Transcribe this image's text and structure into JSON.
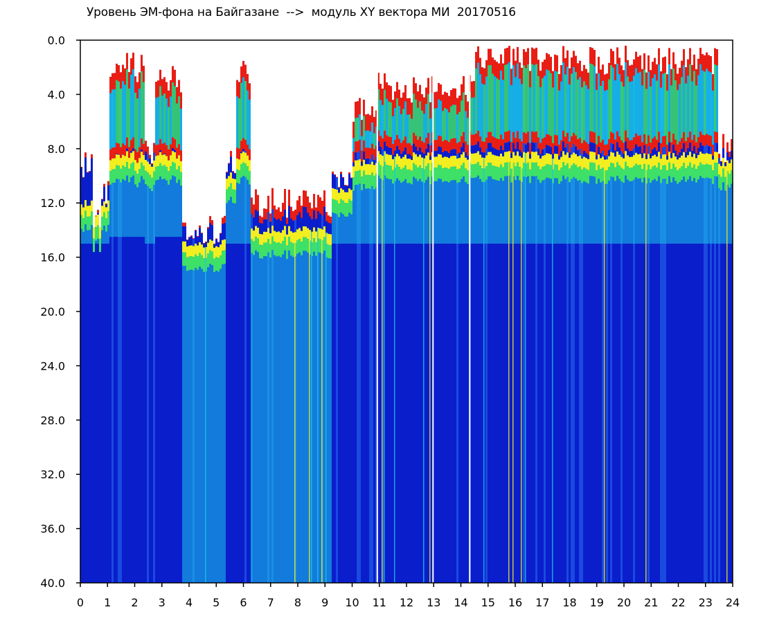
{
  "chart_data": {
    "type": "heatmap",
    "title": "Уровень ЭМ-фона на Байгазане  -->  модуль XY вектора МИ  20170516",
    "xlabel": "",
    "ylabel": "",
    "x_ticks": [
      "0",
      "1",
      "2",
      "3",
      "4",
      "5",
      "6",
      "7",
      "8",
      "9",
      "10",
      "11",
      "12",
      "13",
      "14",
      "15",
      "16",
      "17",
      "18",
      "19",
      "20",
      "21",
      "22",
      "23",
      "24"
    ],
    "y_ticks": [
      "0.0",
      "4.0",
      "8.0",
      "12.0",
      "16.0",
      "20.0",
      "24.0",
      "28.0",
      "32.0",
      "36.0",
      "40.0"
    ],
    "xlim": [
      0,
      24
    ],
    "ylim": [
      0,
      40
    ],
    "y_inverted": true,
    "grid": false,
    "colormap": [
      "#0a1ecc",
      "#1a4ae0",
      "#19c8e8",
      "#3ee068",
      "#f2ee20",
      "#e81e14"
    ],
    "background_color": "#ffffff",
    "columns": [
      {
        "x0": 0.0,
        "x1": 0.45,
        "top": 9,
        "peak_top": 9,
        "band": [
          12,
          15
        ]
      },
      {
        "x0": 0.45,
        "x1": 0.75,
        "top": 13,
        "peak_top": 13,
        "band": [
          13,
          15
        ]
      },
      {
        "x0": 0.75,
        "x1": 1.0,
        "top": 11,
        "peak_top": 11,
        "band": [
          12,
          15
        ]
      },
      {
        "x0": 1.0,
        "x1": 2.3,
        "top": 2,
        "peak_top": 8.5,
        "band": [
          8.5,
          14.5
        ]
      },
      {
        "x0": 2.3,
        "x1": 2.7,
        "top": 8,
        "peak_top": 8.5,
        "band": [
          9,
          15
        ]
      },
      {
        "x0": 2.7,
        "x1": 3.7,
        "top": 3,
        "peak_top": 8.5,
        "band": [
          8.5,
          14.5
        ]
      },
      {
        "x0": 3.7,
        "x1": 5.3,
        "top": 14,
        "peak_top": 14,
        "band": [
          15,
          40
        ]
      },
      {
        "x0": 5.3,
        "x1": 5.7,
        "top": 9,
        "peak_top": 9,
        "band": [
          10,
          15
        ]
      },
      {
        "x0": 5.7,
        "x1": 6.2,
        "top": 2.5,
        "peak_top": 8.5,
        "band": [
          8.5,
          15
        ]
      },
      {
        "x0": 6.2,
        "x1": 9.2,
        "top": 12,
        "peak_top": 13,
        "band": [
          14,
          40
        ]
      },
      {
        "x0": 9.2,
        "x1": 10.0,
        "top": 10,
        "peak_top": 10,
        "band": [
          11,
          15
        ]
      },
      {
        "x0": 10.0,
        "x1": 10.9,
        "top": 5,
        "peak_top": 8.5,
        "band": [
          9,
          15
        ]
      },
      {
        "x0": 10.9,
        "x1": 14.5,
        "top": 3.5,
        "peak_top": 8,
        "band": [
          8.5,
          15
        ]
      },
      {
        "x0": 14.5,
        "x1": 23.4,
        "top": 1.5,
        "peak_top": 8,
        "band": [
          8.5,
          15
        ]
      },
      {
        "x0": 23.4,
        "x1": 24.0,
        "top": 8,
        "peak_top": 8.5,
        "band": [
          9,
          15
        ]
      }
    ],
    "gaps": [
      10.9,
      12.95,
      14.3
    ]
  }
}
